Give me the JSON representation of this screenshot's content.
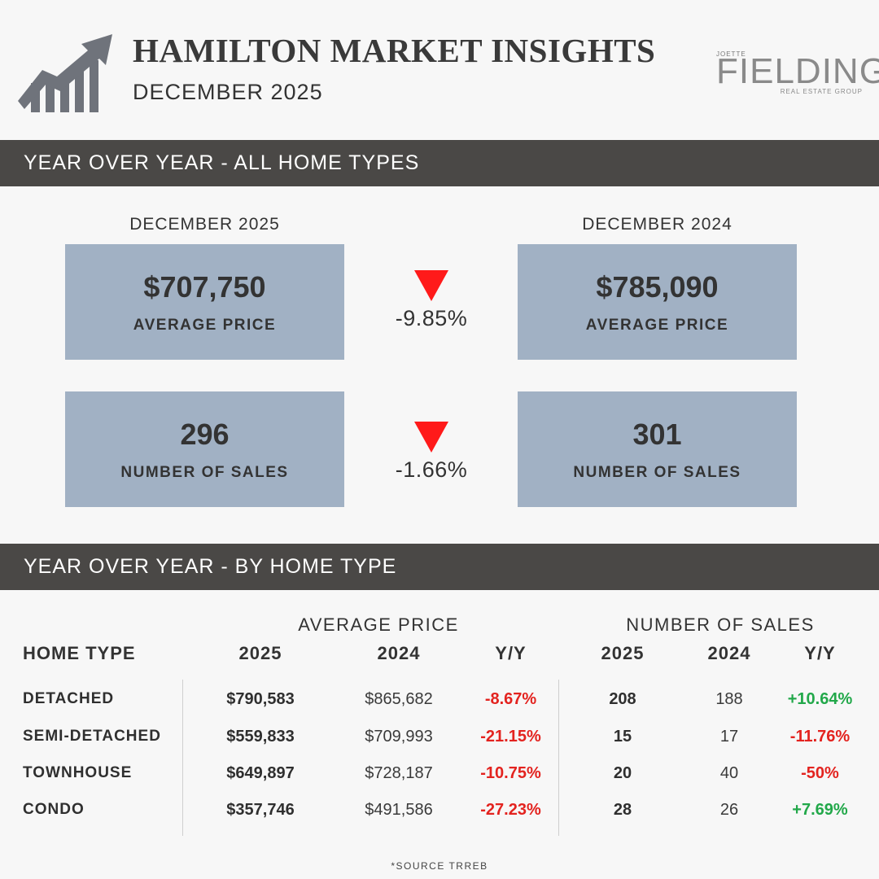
{
  "header": {
    "title": "HAMILTON MARKET INSIGHTS",
    "subtitle": "DECEMBER 2025",
    "brand_top": "JOETTE",
    "brand_main": "FIELDING",
    "brand_sub": "REAL ESTATE GROUP",
    "logo_icon": "rising-chart-arrow-icon"
  },
  "section_all": {
    "heading": "YEAR OVER YEAR - ALL HOME TYPES",
    "current_label": "DECEMBER 2025",
    "previous_label": "DECEMBER 2024",
    "price": {
      "current_value": "$707,750",
      "previous_value": "$785,090",
      "label": "AVERAGE PRICE",
      "change": "-9.85%",
      "direction_icon": "down-triangle-icon"
    },
    "sales": {
      "current_value": "296",
      "previous_value": "301",
      "label": "NUMBER OF SALES",
      "change": "-1.66%",
      "direction_icon": "down-triangle-icon"
    }
  },
  "section_type": {
    "heading": "YEAR OVER YEAR - BY HOME TYPE",
    "group_price": "AVERAGE PRICE",
    "group_sales": "NUMBER OF SALES",
    "columns": [
      "HOME TYPE",
      "2025",
      "2024",
      "Y/Y",
      "2025",
      "2024",
      "Y/Y"
    ],
    "rows": [
      {
        "type": "DETACHED",
        "price_2025": "$790,583",
        "price_2024": "$865,682",
        "price_yy": "-8.67%",
        "sales_2025": "208",
        "sales_2024": "188",
        "sales_yy": "+10.64%"
      },
      {
        "type": "SEMI-DETACHED",
        "price_2025": "$559,833",
        "price_2024": "$709,993",
        "price_yy": "-21.15%",
        "sales_2025": "15",
        "sales_2024": "17",
        "sales_yy": "-11.76%"
      },
      {
        "type": "TOWNHOUSE",
        "price_2025": "$649,897",
        "price_2024": "$728,187",
        "price_yy": "-10.75%",
        "sales_2025": "20",
        "sales_2024": "40",
        "sales_yy": "-50%"
      },
      {
        "type": "CONDO",
        "price_2025": "$357,746",
        "price_2024": "$491,586",
        "price_yy": "-27.23%",
        "sales_2025": "28",
        "sales_2024": "26",
        "sales_yy": "+7.69%"
      }
    ]
  },
  "colors": {
    "bar_bg": "#4a4846",
    "box_bg": "#a1b1c4",
    "negative": "#e3231f",
    "positive": "#22a84a",
    "down_arrow": "#ff1a1a"
  },
  "footer": {
    "source": "*SOURCE TRREB"
  }
}
